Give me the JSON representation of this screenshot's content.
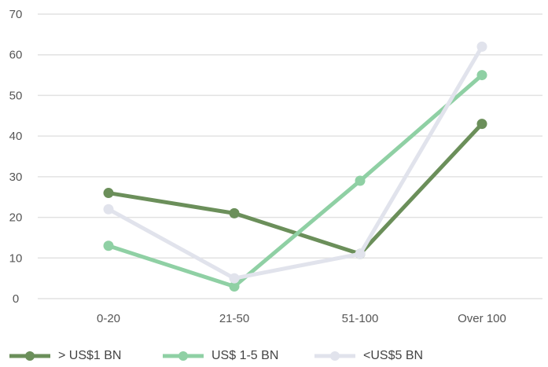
{
  "chart_data": {
    "type": "line",
    "categories": [
      "0-20",
      "21-50",
      "51-100",
      "Over 100"
    ],
    "series": [
      {
        "name": "> US$1 BN",
        "color": "#6b8f5a",
        "values": [
          26,
          21,
          11,
          43
        ]
      },
      {
        "name": "US$ 1-5 BN",
        "color": "#8fd0a4",
        "values": [
          13,
          3,
          29,
          55
        ]
      },
      {
        "name": "<US$5 BN",
        "color": "#e1e3ec",
        "values": [
          22,
          5,
          11,
          62
        ]
      }
    ],
    "yticks": [
      0,
      10,
      20,
      30,
      40,
      50,
      60,
      70
    ],
    "ylim": [
      0,
      70
    ],
    "title": "",
    "xlabel": "",
    "ylabel": "",
    "grid": true,
    "legend_position": "bottom-left"
  }
}
